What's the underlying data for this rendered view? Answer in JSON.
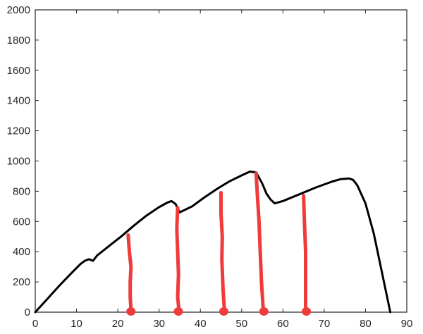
{
  "chart_data": {
    "type": "line",
    "title": "",
    "xlabel": "",
    "ylabel": "",
    "xlim": [
      0,
      90
    ],
    "ylim": [
      0,
      2000
    ],
    "xticks": [
      0,
      10,
      20,
      30,
      40,
      50,
      60,
      70,
      80,
      90
    ],
    "yticks": [
      0,
      200,
      400,
      600,
      800,
      1000,
      1200,
      1400,
      1600,
      1800,
      2000
    ],
    "grid": false,
    "colors": {
      "series": "#000000",
      "markers": "#ef3b3b",
      "axis": "#262626"
    },
    "series": [
      {
        "x": [
          0,
          3,
          6,
          9,
          11,
          12,
          13,
          14,
          15,
          18,
          21,
          24,
          27,
          30,
          32,
          33,
          34,
          35,
          38,
          41,
          44,
          47,
          50,
          52,
          53.5,
          55,
          56,
          57,
          58,
          60,
          64,
          68,
          72,
          74,
          76,
          77,
          78,
          80,
          82,
          84,
          86
        ],
        "y": [
          0,
          90,
          180,
          265,
          320,
          340,
          350,
          340,
          375,
          440,
          505,
          575,
          640,
          695,
          725,
          735,
          715,
          660,
          700,
          760,
          815,
          865,
          905,
          930,
          925,
          850,
          785,
          745,
          720,
          735,
          780,
          825,
          865,
          880,
          885,
          875,
          840,
          720,
          520,
          260,
          0
        ]
      }
    ],
    "markers": [
      {
        "x": [
          22.5,
          22.8,
          23.2,
          23.0,
          23.0,
          23.2,
          23.0
        ],
        "y": [
          510,
          400,
          300,
          200,
          100,
          15,
          0
        ]
      },
      {
        "x": [
          34.5,
          34.3,
          34.5,
          34.7,
          34.5,
          34.8,
          34.5
        ],
        "y": [
          690,
          550,
          400,
          250,
          100,
          15,
          0
        ]
      },
      {
        "x": [
          45.0,
          45.0,
          45.3,
          45.2,
          45.5,
          45.8,
          45.5
        ],
        "y": [
          790,
          650,
          500,
          350,
          150,
          20,
          0
        ]
      },
      {
        "x": [
          53.5,
          53.8,
          54.2,
          54.5,
          54.8,
          55.2,
          55.2
        ],
        "y": [
          920,
          780,
          600,
          400,
          200,
          30,
          0
        ]
      },
      {
        "x": [
          65.0,
          65.2,
          65.5,
          65.5,
          65.5,
          65.5,
          65.5
        ],
        "y": [
          770,
          600,
          400,
          250,
          100,
          20,
          0
        ]
      }
    ]
  }
}
